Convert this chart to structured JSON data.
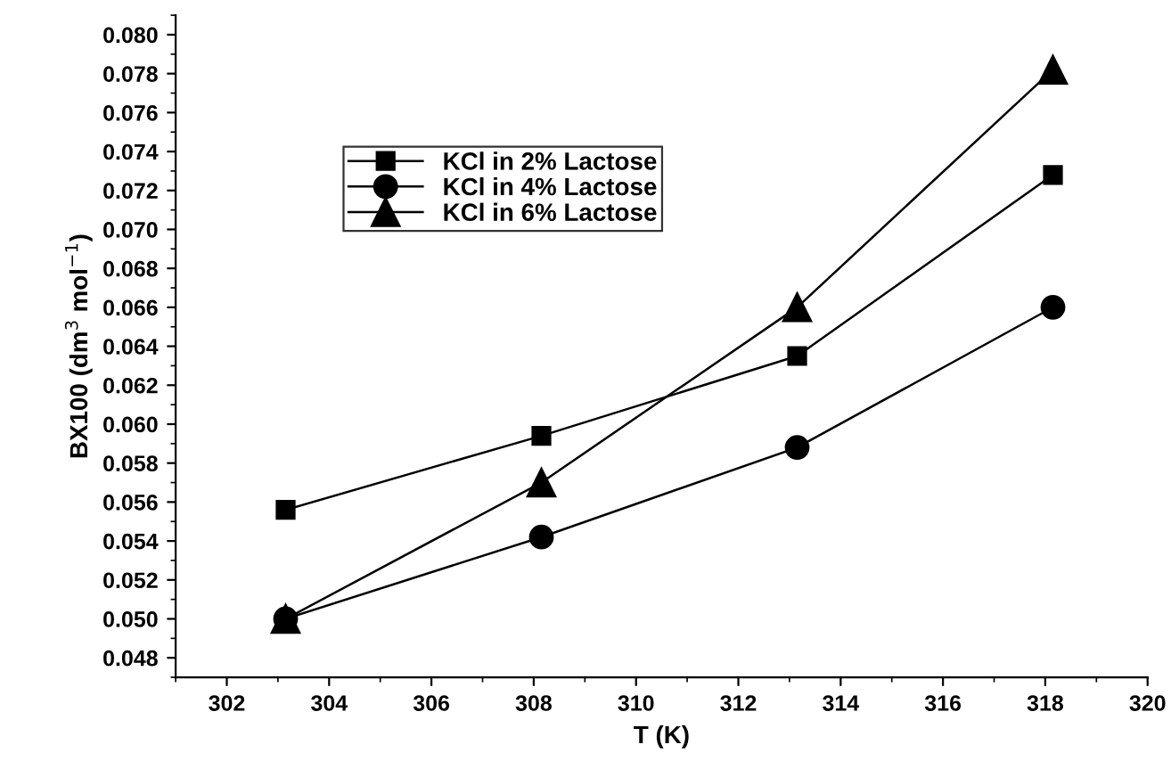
{
  "chart_data": {
    "type": "line",
    "xlabel": "T (K)",
    "ylabel": "BX100 (dm$^{3}$ mol$^{−1}$)",
    "x": [
      303.15,
      308.15,
      313.15,
      318.15
    ],
    "series": [
      {
        "name": "KCl in 2% Lactose",
        "color": "#000000",
        "marker": "square",
        "values": [
          0.0556,
          0.0594,
          0.0635,
          0.0728
        ]
      },
      {
        "name": "KCl in 4% Lactose",
        "color": "#000000",
        "marker": "circle",
        "values": [
          0.05,
          0.0542,
          0.0588,
          0.066
        ]
      },
      {
        "name": "KCl in 6% Lactose",
        "color": "#000000",
        "marker": "triangle",
        "values": [
          0.05,
          0.057,
          0.066,
          0.0782
        ]
      }
    ],
    "xlim": [
      301,
      320
    ],
    "xticks": [
      302,
      304,
      306,
      308,
      310,
      312,
      314,
      316,
      318,
      320
    ],
    "ylim": [
      0.047,
      0.081
    ],
    "yticks": [
      {
        "value": 0.048,
        "label": "0.048"
      },
      {
        "value": 0.05,
        "label": "0.050"
      },
      {
        "value": 0.052,
        "label": "0.052"
      },
      {
        "value": 0.054,
        "label": "0.054"
      },
      {
        "value": 0.056,
        "label": "0.056"
      },
      {
        "value": 0.058,
        "label": "0.058"
      },
      {
        "value": 0.06,
        "label": "0.060"
      },
      {
        "value": 0.062,
        "label": "0.062"
      },
      {
        "value": 0.064,
        "label": "0.064"
      },
      {
        "value": 0.066,
        "label": "0.066"
      },
      {
        "value": 0.068,
        "label": "0.068"
      },
      {
        "value": 0.07,
        "label": "0.070"
      },
      {
        "value": 0.072,
        "label": "0.072"
      },
      {
        "value": 0.074,
        "label": "0.074"
      },
      {
        "value": 0.076,
        "label": "0.076"
      },
      {
        "value": 0.078,
        "label": "0.078"
      },
      {
        "value": 0.08,
        "label": "0.080"
      }
    ],
    "grid": false,
    "legend": "top left",
    "line_style": "solid"
  }
}
